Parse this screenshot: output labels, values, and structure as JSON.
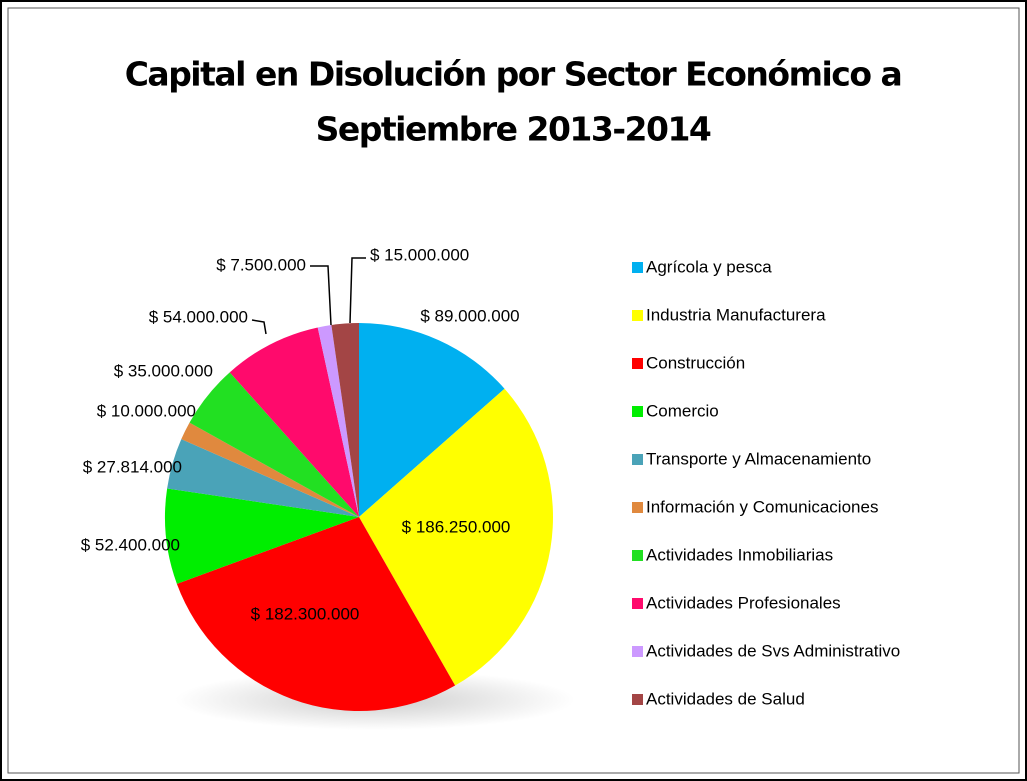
{
  "chart_data": {
    "type": "pie",
    "title": [
      "Capital en Disolución por Sector Económico a",
      "Septiembre 2013-2014"
    ],
    "categories": [
      "Agrícola y pesca",
      "Industria Manufacturera",
      "Construcción",
      "Comercio",
      "Transporte y Almacenamiento",
      "Información y Comunicaciones",
      "Actividades Inmobiliarias",
      "Actividades Profesionales",
      "Actividades de Svs Administrativo",
      "Actividades de Salud"
    ],
    "values": [
      89000000,
      186250000,
      182300000,
      52400000,
      27814000,
      10000000,
      35000000,
      54000000,
      7500000,
      15000000
    ],
    "value_labels": [
      "$ 89.000.000",
      "$ 186.250.000",
      "$ 182.300.000",
      "$ 52.400.000",
      "$ 27.814.000",
      "$ 10.000.000",
      "$ 35.000.000",
      "$ 54.000.000",
      "$ 7.500.000",
      "$ 15.000.000"
    ],
    "colors": [
      "#00b0f0",
      "#ffff00",
      "#ff0000",
      "#00ee00",
      "#4aa3b8",
      "#e0893e",
      "#22e022",
      "#ff0a6c",
      "#cc99ff",
      "#a34545"
    ],
    "legend": "right"
  }
}
